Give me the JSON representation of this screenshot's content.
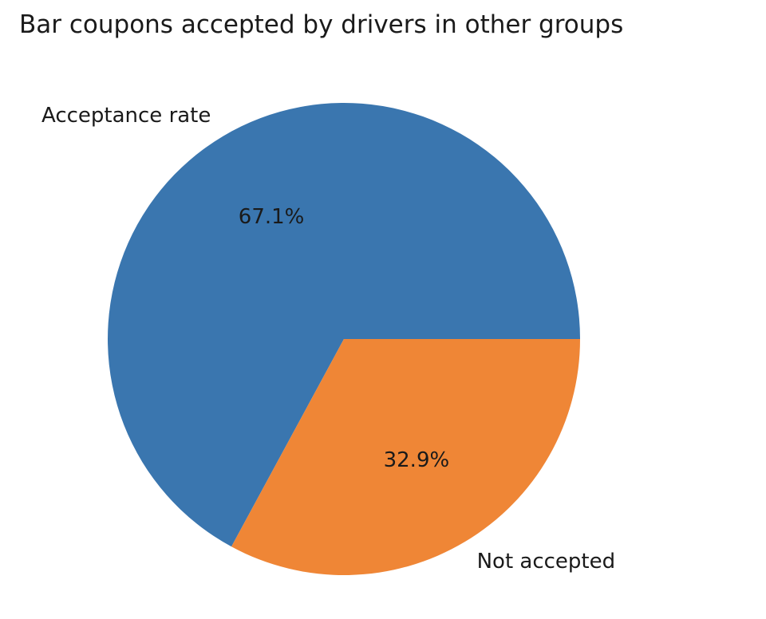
{
  "chart_data": {
    "type": "pie",
    "title": "Bar coupons accepted by drivers in other groups",
    "labels": [
      "Acceptance rate",
      "Not accepted"
    ],
    "values": [
      67.1,
      32.9
    ],
    "autopct_labels": [
      "67.1%",
      "32.9%"
    ],
    "colors": [
      "#3a76af",
      "#ef8636"
    ],
    "start_angle_degrees": 0,
    "direction": "counterclockwise",
    "legend": "none"
  }
}
